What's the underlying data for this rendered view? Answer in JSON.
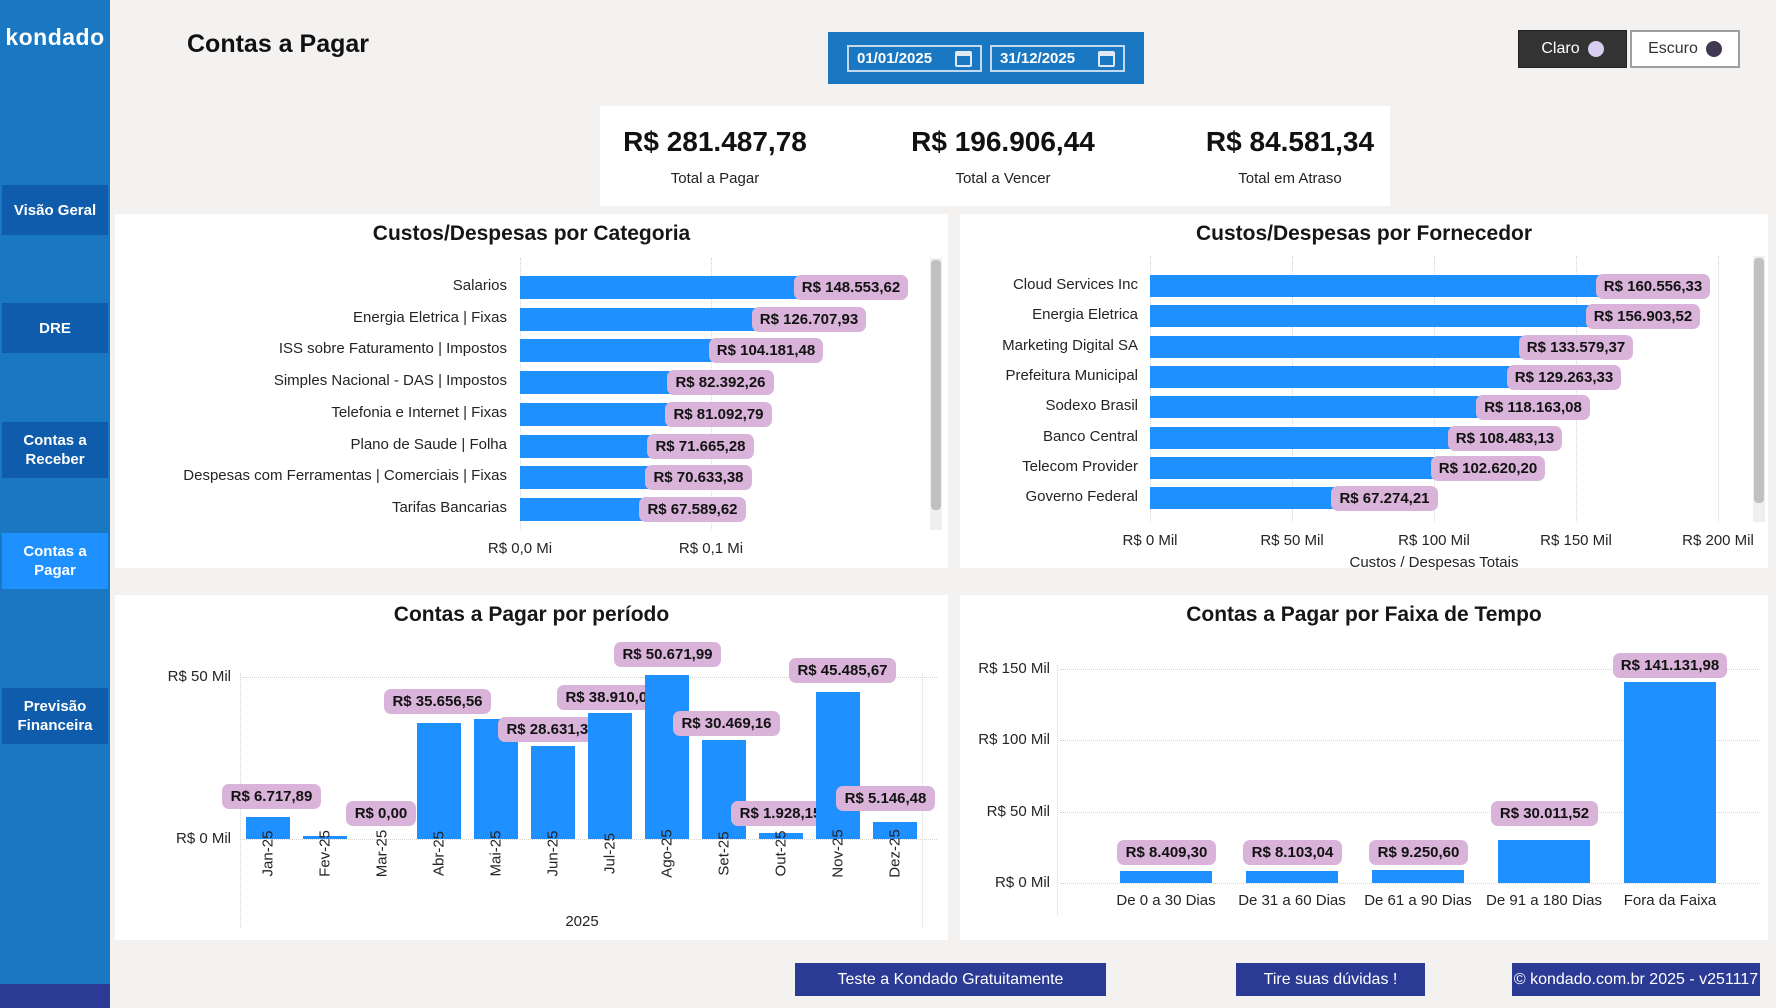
{
  "sidebar": {
    "logo": "kondado",
    "items": [
      {
        "label": "Visão Geral",
        "active": false
      },
      {
        "label": "DRE",
        "active": false
      },
      {
        "label": "Contas a Receber",
        "active": false
      },
      {
        "label": "Contas a Pagar",
        "active": true
      },
      {
        "label": "Previsão Financeira",
        "active": false
      }
    ]
  },
  "header": {
    "title": "Contas a Pagar",
    "date_from": "01/01/2025",
    "date_to": "31/12/2025",
    "theme_light": "Claro",
    "theme_dark": "Escuro"
  },
  "kpis": [
    {
      "value": "R$ 281.487,78",
      "label": "Total a Pagar"
    },
    {
      "value": "R$ 196.906,44",
      "label": "Total a Vencer"
    },
    {
      "value": "R$ 84.581,34",
      "label": "Total em Atraso"
    }
  ],
  "colors": {
    "bar": "#1e90ff",
    "label_pill": "#d9b3d9",
    "sidebar": "#1a78c3",
    "nav_active": "#1e90ff",
    "footer_button": "#2b3a94"
  },
  "chart_data": [
    {
      "type": "bar",
      "orientation": "horizontal",
      "title": "Custos/Despesas por Categoria",
      "categories": [
        "Salarios",
        "Energia Eletrica | Fixas",
        "ISS sobre Faturamento | Impostos",
        "Simples Nacional - DAS | Impostos",
        "Telefonia e Internet | Fixas",
        "Plano de Saude | Folha",
        "Despesas com Ferramentas | Comerciais | Fixas",
        "Tarifas Bancarias"
      ],
      "values": [
        148553.62,
        126707.93,
        104181.48,
        82392.26,
        81092.79,
        71665.28,
        70633.38,
        67589.62
      ],
      "labels": [
        "R$ 148.553,62",
        "R$ 126.707,93",
        "R$ 104.181,48",
        "R$ 82.392,26",
        "R$ 81.092,79",
        "R$ 71.665,28",
        "R$ 70.633,38",
        "R$ 67.589,62"
      ],
      "xticks": [
        {
          "value": 0,
          "label": "R$ 0,0 Mi"
        },
        {
          "value": 100000,
          "label": "R$ 0,1 Mi"
        }
      ],
      "xlabel": "",
      "grid": true,
      "scrollbar": true
    },
    {
      "type": "bar",
      "orientation": "horizontal",
      "title": "Custos/Despesas por Fornecedor",
      "categories": [
        "Cloud Services Inc",
        "Energia Eletrica",
        "Marketing Digital SA",
        "Prefeitura Municipal",
        "Sodexo Brasil",
        "Banco Central",
        "Telecom Provider",
        "Governo Federal"
      ],
      "values": [
        160556.33,
        156903.52,
        133579.37,
        129263.33,
        118163.08,
        108483.13,
        102620.2,
        67274.21
      ],
      "labels": [
        "R$ 160.556,33",
        "R$ 156.903,52",
        "R$ 133.579,37",
        "R$ 129.263,33",
        "R$ 118.163,08",
        "R$ 108.483,13",
        "R$ 102.620,20",
        "R$ 67.274,21"
      ],
      "xticks": [
        {
          "value": 0,
          "label": "R$ 0 Mil"
        },
        {
          "value": 50000,
          "label": "R$ 50 Mil"
        },
        {
          "value": 100000,
          "label": "R$ 100 Mil"
        },
        {
          "value": 150000,
          "label": "R$ 150 Mil"
        },
        {
          "value": 200000,
          "label": "R$ 200 Mil"
        }
      ],
      "xlabel": "Custos / Despesas Totais",
      "grid": true,
      "scrollbar": true
    },
    {
      "type": "bar",
      "orientation": "vertical",
      "title": "Contas a Pagar por período",
      "points": [
        {
          "category": "Jan-25",
          "value": 6717.89,
          "label": "R$ 6.717,89"
        },
        {
          "category": "Fev-25",
          "value": 1000,
          "label": null,
          "estimated": true
        },
        {
          "category": "Mar-25",
          "value": 0,
          "label": "R$ 0,00"
        },
        {
          "category": "Abr-25",
          "value": 35656.56,
          "label": "R$ 35.656,56"
        },
        {
          "category": "Mai-25",
          "value": 36900,
          "label": null,
          "estimated": true
        },
        {
          "category": "Jun-25",
          "value": 28631.38,
          "label": "R$ 28.631,38"
        },
        {
          "category": "Jul-25",
          "value": 38910.08,
          "label": "R$ 38.910,08"
        },
        {
          "category": "Ago-25",
          "value": 50671.99,
          "label": "R$ 50.671,99"
        },
        {
          "category": "Set-25",
          "value": 30469.16,
          "label": "R$ 30.469,16"
        },
        {
          "category": "Out-25",
          "value": 1928.15,
          "label": "R$ 1.928,15"
        },
        {
          "category": "Nov-25",
          "value": 45485.67,
          "label": "R$ 45.485,67"
        },
        {
          "category": "Dez-25",
          "value": 5146.48,
          "label": "R$ 5.146,48"
        }
      ],
      "yticks": [
        {
          "value": 0,
          "label": "R$ 0 Mil"
        },
        {
          "value": 50000,
          "label": "R$ 50 Mil"
        }
      ],
      "xlabel": "2025",
      "grid": true
    },
    {
      "type": "bar",
      "orientation": "vertical",
      "title": "Contas a Pagar por Faixa de Tempo",
      "points": [
        {
          "category": "De 0 a 30 Dias",
          "value": 8409.3,
          "label": "R$ 8.409,30"
        },
        {
          "category": "De 31 a 60 Dias",
          "value": 8103.04,
          "label": "R$ 8.103,04"
        },
        {
          "category": "De 61 a 90 Dias",
          "value": 9250.6,
          "label": "R$ 9.250,60"
        },
        {
          "category": "De 91 a 180 Dias",
          "value": 30011.52,
          "label": "R$ 30.011,52"
        },
        {
          "category": "Fora da Faixa",
          "value": 141131.98,
          "label": "R$ 141.131,98"
        }
      ],
      "yticks": [
        {
          "value": 0,
          "label": "R$ 0 Mil"
        },
        {
          "value": 50000,
          "label": "R$ 50 Mil"
        },
        {
          "value": 100000,
          "label": "R$ 100 Mil"
        },
        {
          "value": 150000,
          "label": "R$ 150 Mil"
        }
      ],
      "xlabel": "",
      "grid": true
    }
  ],
  "footer": {
    "cta": "Teste a Kondado Gratuitamente",
    "help": "Tire suas dúvidas !",
    "copyright": "© kondado.com.br 2025 - v251117"
  }
}
